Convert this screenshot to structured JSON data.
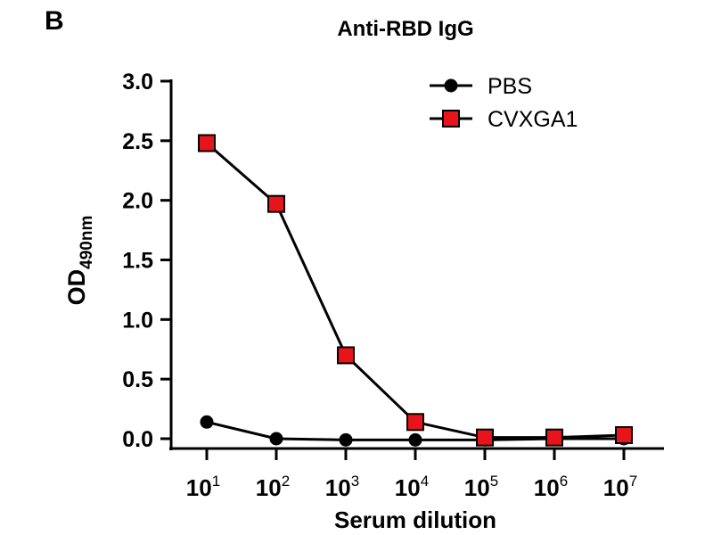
{
  "panel_label": "B",
  "chart_data": {
    "type": "line",
    "title": "Anti-RBD IgG",
    "xlabel": "Serum dilution",
    "ylabel": {
      "main": "OD",
      "subscript": "490nm"
    },
    "x_scale": "log10",
    "x": [
      1,
      2,
      3,
      4,
      5,
      6,
      7
    ],
    "x_tick_labels": [
      {
        "base": "10",
        "exp": "1"
      },
      {
        "base": "10",
        "exp": "2"
      },
      {
        "base": "10",
        "exp": "3"
      },
      {
        "base": "10",
        "exp": "4"
      },
      {
        "base": "10",
        "exp": "5"
      },
      {
        "base": "10",
        "exp": "6"
      },
      {
        "base": "10",
        "exp": "7"
      }
    ],
    "ylim": [
      0,
      3.0
    ],
    "y_ticks": [
      "0.0",
      "0.5",
      "1.0",
      "1.5",
      "2.0",
      "2.5",
      "3.0"
    ],
    "grid": false,
    "legend_position": "top-right",
    "series": [
      {
        "name": "PBS",
        "marker": "circle",
        "color": "#000000",
        "values": [
          0.14,
          0.0,
          -0.01,
          -0.01,
          -0.01,
          0.0,
          0.0
        ]
      },
      {
        "name": "CVXGA1",
        "marker": "square",
        "color": "#e8141b",
        "values": [
          2.48,
          1.97,
          0.7,
          0.14,
          0.01,
          0.01,
          0.03
        ]
      }
    ]
  }
}
